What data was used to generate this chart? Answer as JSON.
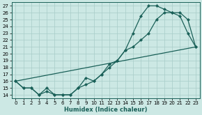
{
  "bg_color": "#cce8e4",
  "grid_color": "#a8ccc8",
  "line_color": "#1a6058",
  "xlabel": "Humidex (Indice chaleur)",
  "xlim": [
    -0.5,
    23.5
  ],
  "ylim": [
    13.5,
    27.5
  ],
  "xticks": [
    0,
    1,
    2,
    3,
    4,
    5,
    6,
    7,
    8,
    9,
    10,
    11,
    12,
    13,
    14,
    15,
    16,
    17,
    18,
    19,
    20,
    21,
    22,
    23
  ],
  "yticks": [
    14,
    15,
    16,
    17,
    18,
    19,
    20,
    21,
    22,
    23,
    24,
    25,
    26,
    27
  ],
  "line1_x": [
    0,
    1,
    2,
    3,
    4,
    5,
    6,
    7,
    8,
    9,
    10,
    11,
    12,
    13,
    14,
    15,
    16,
    17,
    18,
    19,
    20,
    21,
    22,
    23
  ],
  "line1_y": [
    16,
    15,
    15,
    14,
    15,
    14,
    14,
    14,
    15,
    16.5,
    16,
    17,
    18.5,
    19,
    20.5,
    23,
    25.5,
    27,
    27,
    26.5,
    26,
    25.5,
    23,
    21
  ],
  "line2_x": [
    0,
    1,
    2,
    3,
    4,
    5,
    6,
    7,
    8,
    9,
    10,
    11,
    12,
    13,
    14,
    15,
    16,
    17,
    18,
    19,
    20,
    21,
    22,
    23
  ],
  "line2_y": [
    16,
    15,
    15,
    14,
    14.5,
    14,
    14,
    14,
    15,
    15.5,
    16,
    17,
    18,
    19,
    20.5,
    21,
    22,
    23,
    25,
    26,
    26,
    26,
    25,
    21
  ],
  "line3_x": [
    0,
    23
  ],
  "line3_y": [
    16,
    21
  ],
  "marker_size": 2.2,
  "line_width": 0.9,
  "tick_fontsize": 5.0,
  "xlabel_fontsize": 6.0
}
